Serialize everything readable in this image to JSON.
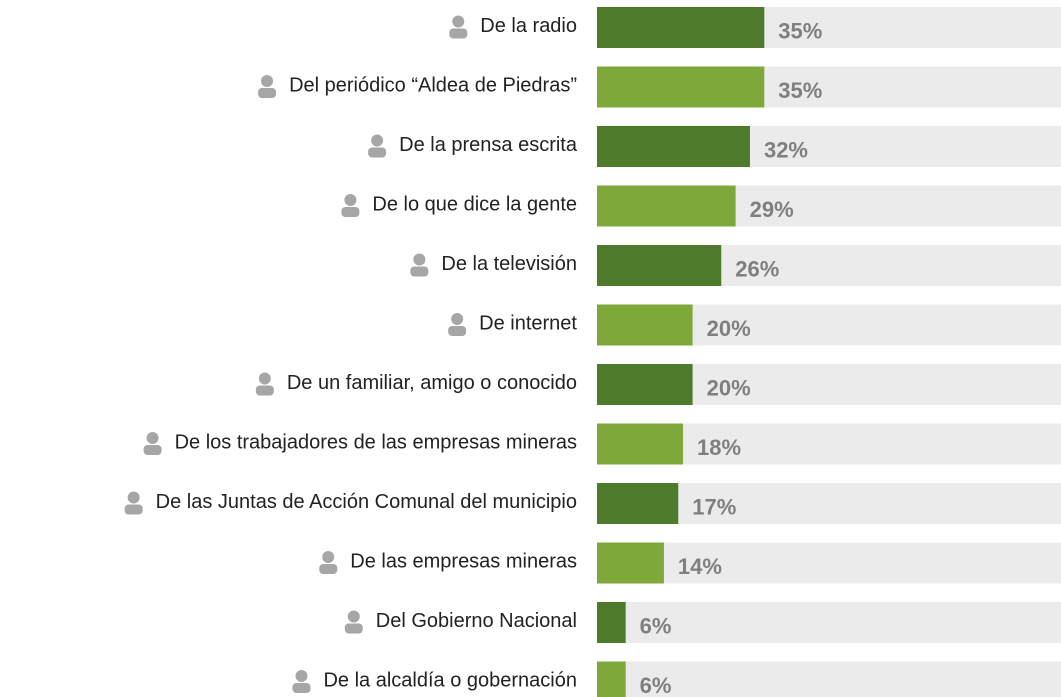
{
  "chart_data": {
    "type": "hbar",
    "categories": [
      "De la radio",
      "Del periódico “Aldea de Piedras”",
      "De la prensa escrita",
      "De lo que dice la gente",
      "De la televisión",
      "De internet",
      "De un familiar, amigo o conocido",
      "De los trabajadores de las empresas mineras",
      "De las Juntas de Acción Comunal del municipio",
      "De las empresas mineras",
      "Del Gobierno Nacional",
      "De la alcaldía o gobernación"
    ],
    "values": [
      35,
      35,
      32,
      29,
      26,
      20,
      20,
      18,
      17,
      14,
      6,
      6
    ],
    "value_labels": [
      "35%",
      "35%",
      "32%",
      "29%",
      "26%",
      "20%",
      "20%",
      "18%",
      "17%",
      "14%",
      "6%",
      "6%"
    ],
    "colors": [
      "#4e7a2c",
      "#7ea83a",
      "#4e7a2c",
      "#7ea83a",
      "#4e7a2c",
      "#7ea83a",
      "#4e7a2c",
      "#7ea83a",
      "#4e7a2c",
      "#7ea83a",
      "#4e7a2c",
      "#7ea83a"
    ]
  }
}
